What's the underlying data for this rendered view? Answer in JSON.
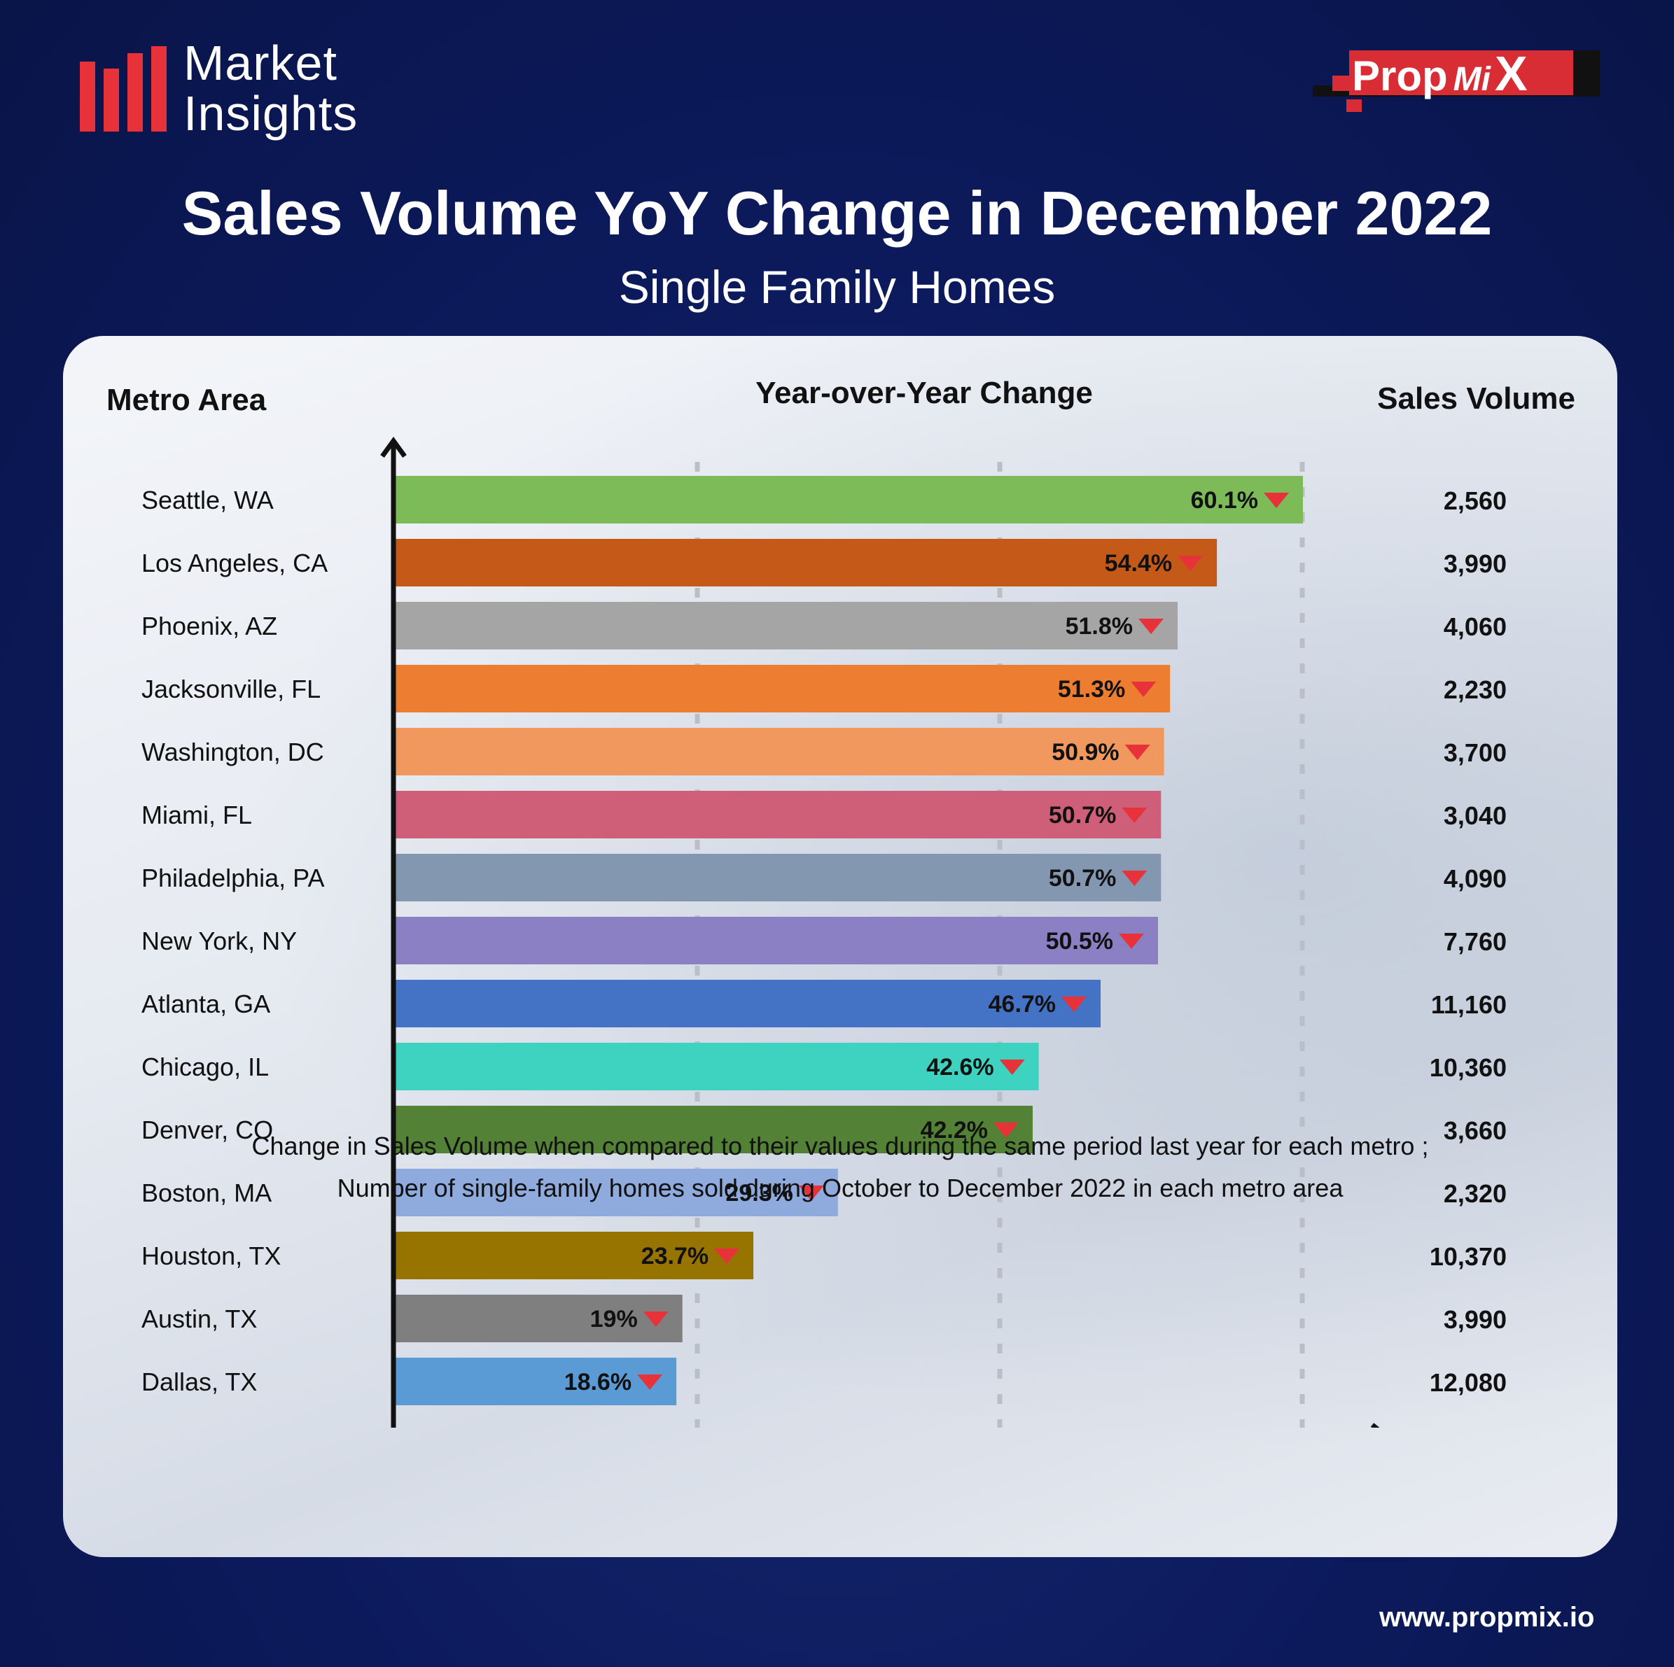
{
  "brand": {
    "logo_line1": "Market",
    "logo_line2": "Insights",
    "partner_logo_main": "Prop",
    "partner_logo_mi": "Mi",
    "partner_logo_x": "X",
    "accent_red": "#e8323a"
  },
  "header": {
    "title": "Sales Volume YoY Change in December 2022",
    "subtitle": "Single Family Homes"
  },
  "columns": {
    "metro": "Metro Area",
    "yoy": "Year-over-Year Change",
    "sales": "Sales Volume"
  },
  "chart_data": {
    "type": "bar",
    "orientation": "horizontal",
    "xlim": [
      0,
      60.1
    ],
    "grid": true,
    "indicator": "down-arrow",
    "indicator_color": "#e8323a",
    "categories": [
      "Seattle, WA",
      "Los Angeles, CA",
      "Phoenix, AZ",
      "Jacksonville, FL",
      "Washington, DC",
      "Miami, FL",
      "Philadelphia, PA",
      "New York, NY",
      "Atlanta, GA",
      "Chicago, IL",
      "Denver, CO",
      "Boston, MA",
      "Houston, TX",
      "Austin, TX",
      "Dallas, TX"
    ],
    "values": [
      60.1,
      54.4,
      51.8,
      51.3,
      50.9,
      50.7,
      50.7,
      50.5,
      46.7,
      42.6,
      42.2,
      29.3,
      23.7,
      19,
      18.6
    ],
    "value_labels": [
      "60.1%",
      "54.4%",
      "51.8%",
      "51.3%",
      "50.9%",
      "50.7%",
      "50.7%",
      "50.5%",
      "46.7%",
      "42.6%",
      "42.2%",
      "29.3%",
      "23.7%",
      "19%",
      "18.6%"
    ],
    "sales_volume": [
      "2,560",
      "3,990",
      "4,060",
      "2,230",
      "3,700",
      "3,040",
      "4,090",
      "7,760",
      "11,160",
      "10,360",
      "3,660",
      "2,320",
      "10,370",
      "3,990",
      "12,080"
    ],
    "colors": [
      "#7dbb58",
      "#c55a18",
      "#a5a5a5",
      "#ed7d31",
      "#f0985e",
      "#cf5f78",
      "#8497b0",
      "#8c80c4",
      "#4472c4",
      "#3ed2c0",
      "#538135",
      "#8faadc",
      "#977400",
      "#7f7f7f",
      "#5b9bd5"
    ]
  },
  "footnote": {
    "line1": "Change in Sales Volume when compared to their values during the same period last year for each metro ;",
    "line2": "Number of single-family homes sold during October to December 2022 in each metro area"
  },
  "footer": {
    "website": "www.propmix.io"
  }
}
